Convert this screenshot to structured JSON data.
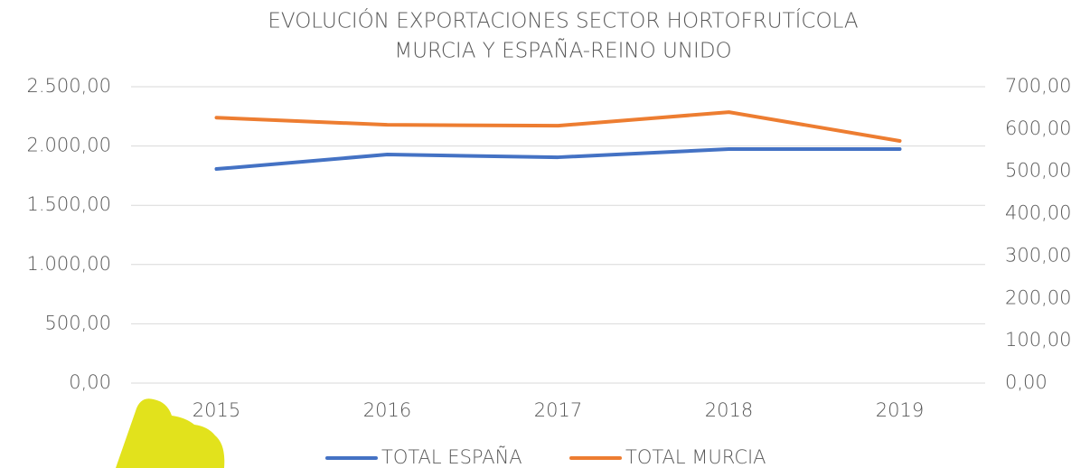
{
  "chart_data": {
    "type": "line",
    "title": [
      "EVOLUCIÓN EXPORTACIONES SECTOR HORTOFRUTÍCOLA",
      "MURCIA Y ESPAÑA-REINO UNIDO"
    ],
    "categories": [
      "2015",
      "2016",
      "2017",
      "2018",
      "2019"
    ],
    "series": [
      {
        "name": "TOTAL ESPAÑA",
        "color": "#4472c4",
        "values": [
          1806,
          1928,
          1905,
          1974,
          1974
        ]
      },
      {
        "name": "TOTAL MURCIA",
        "color": "#ed7d31",
        "axis": "y2",
        "values": [
          627,
          610,
          608,
          640,
          572
        ]
      }
    ],
    "ylim": [
      0,
      2500
    ],
    "yticks": [
      {
        "value": 0,
        "label": "0,00"
      },
      {
        "value": 500,
        "label": "500,00"
      },
      {
        "value": 1000,
        "label": "1.000,00"
      },
      {
        "value": 1500,
        "label": "1.500,00"
      },
      {
        "value": 2000,
        "label": "2.000,00"
      },
      {
        "value": 2500,
        "label": "2.500,00"
      }
    ],
    "y2lim": [
      0,
      700
    ],
    "y2ticks": [
      {
        "value": 0,
        "label": "0,00"
      },
      {
        "value": 100,
        "label": "100,00"
      },
      {
        "value": 200,
        "label": "200,00"
      },
      {
        "value": 300,
        "label": "300,00"
      },
      {
        "value": 400,
        "label": "400,00"
      },
      {
        "value": 500,
        "label": "500,00"
      },
      {
        "value": 600,
        "label": "600,00"
      },
      {
        "value": 700,
        "label": "700,00"
      }
    ],
    "grid": true,
    "legend": "bottom"
  }
}
